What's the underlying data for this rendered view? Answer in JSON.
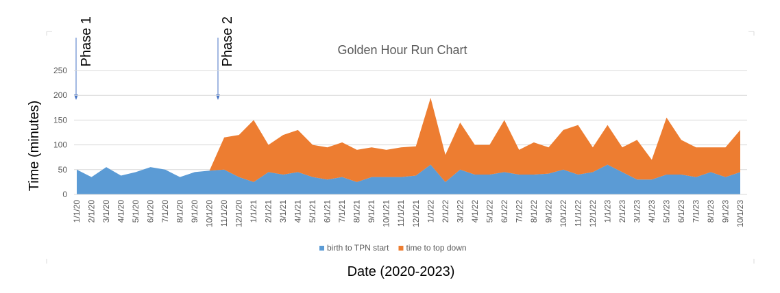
{
  "chart_data": {
    "type": "area",
    "title": "Golden Hour Run Chart",
    "x_label": "Date (2020-2023)",
    "y_label": "Time (minutes)",
    "annotations": [
      "Phase 1",
      "Phase 2"
    ],
    "stacked": true,
    "grid": true,
    "legend": "bottom",
    "categories": [
      "1/1/20",
      "2/1/20",
      "3/1/20",
      "4/1/20",
      "5/1/20",
      "6/1/20",
      "7/1/20",
      "8/1/20",
      "9/1/20",
      "10/1/20",
      "11/1/20",
      "12/1/20",
      "1/1/21",
      "2/1/21",
      "3/1/21",
      "4/1/21",
      "5/1/21",
      "6/1/21",
      "7/1/21",
      "8/1/21",
      "9/1/21",
      "10/1/21",
      "11/1/21",
      "12/1/21",
      "1/1/22",
      "2/1/22",
      "3/1/22",
      "4/1/22",
      "5/1/22",
      "6/1/22",
      "7/1/22",
      "8/1/22",
      "9/1/22",
      "10/1/22",
      "11/1/22",
      "12/1/22",
      "1/1/23",
      "2/1/23",
      "3/1/23",
      "4/1/23",
      "5/1/23",
      "6/1/23",
      "7/1/23",
      "8/1/23",
      "9/1/23",
      "10/1/23"
    ],
    "series": [
      {
        "name": "birth to TPN start",
        "color": "#5b9bd5",
        "values": [
          50,
          35,
          55,
          38,
          45,
          55,
          50,
          35,
          45,
          48,
          50,
          35,
          25,
          45,
          40,
          45,
          35,
          30,
          35,
          25,
          35,
          35,
          35,
          38,
          60,
          25,
          50,
          40,
          40,
          45,
          40,
          40,
          42,
          50,
          40,
          45,
          60,
          45,
          30,
          30,
          40,
          40,
          35,
          45,
          35,
          45
        ]
      },
      {
        "name": "time to top down",
        "color": "#ed7d31",
        "values": [
          0,
          0,
          0,
          0,
          0,
          0,
          0,
          0,
          0,
          0,
          65,
          85,
          125,
          55,
          80,
          85,
          65,
          65,
          70,
          65,
          60,
          55,
          60,
          59,
          135,
          55,
          95,
          60,
          60,
          105,
          50,
          65,
          53,
          80,
          100,
          50,
          80,
          50,
          80,
          40,
          115,
          70,
          60,
          50,
          60,
          85
        ]
      }
    ],
    "ylim": [
      0,
      250
    ],
    "yticks": [
      0,
      50,
      100,
      150,
      200,
      250
    ]
  }
}
